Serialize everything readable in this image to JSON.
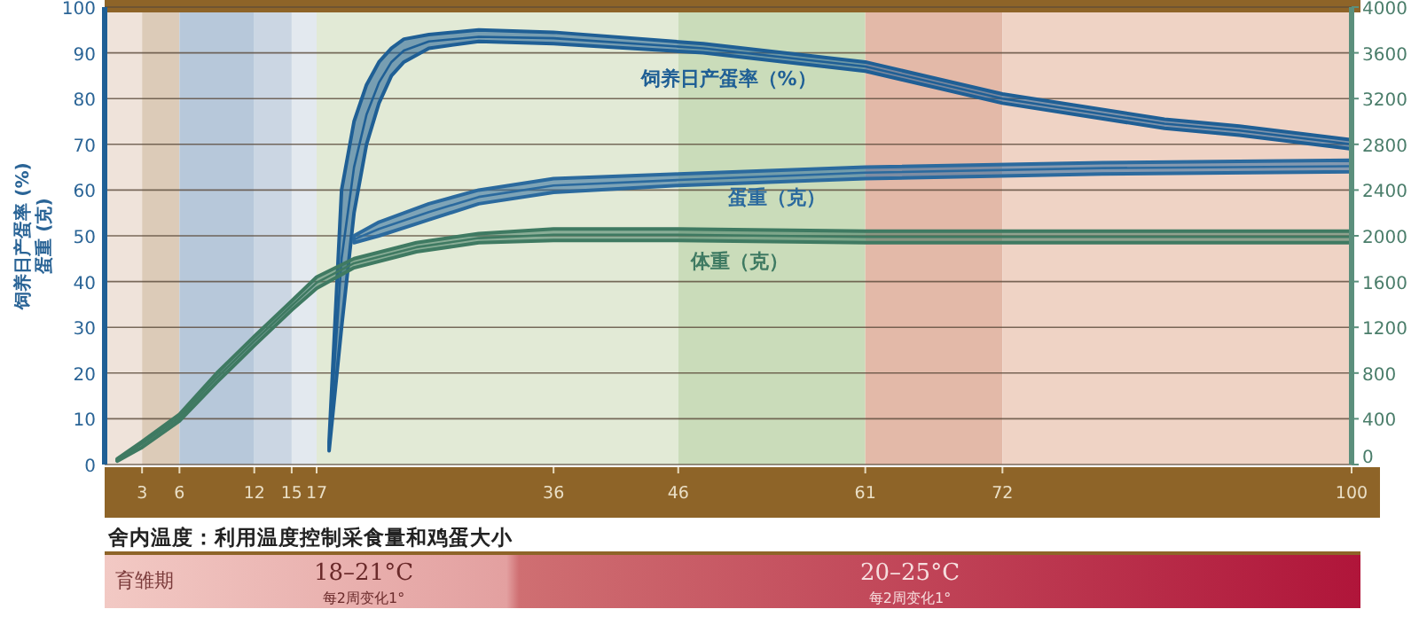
{
  "chart_data": {
    "type": "line",
    "ylabel": "饲养日产蛋率 (%)\n蛋重 (克)",
    "xlim": [
      0,
      100
    ],
    "xticks": [
      3,
      6,
      12,
      15,
      17,
      36,
      46,
      61,
      72,
      100
    ],
    "ylim": [
      0,
      100
    ],
    "yticks": [
      0,
      10,
      20,
      30,
      40,
      50,
      60,
      70,
      80,
      90,
      100
    ],
    "y2lim": [
      0,
      4000
    ],
    "y2ticks": [
      0,
      400,
      800,
      1200,
      1600,
      2000,
      2400,
      2800,
      3200,
      3600,
      4000
    ],
    "grid": "y",
    "marker": "none",
    "line_style": "solid",
    "series": [
      {
        "name": "饲养日产蛋率（%）",
        "color": "#1f5f95",
        "x": [
          18,
          19,
          20,
          21,
          22,
          23,
          24,
          26,
          30,
          36,
          48,
          61,
          72,
          85,
          91,
          100
        ],
        "values": [
          4,
          45,
          65,
          76.5,
          83.5,
          88,
          90.5,
          92.5,
          93.5,
          93.2,
          91,
          87,
          80,
          74.5,
          73,
          70
        ],
        "lower": [
          3,
          30,
          55,
          70,
          79,
          85,
          88,
          91,
          92.5,
          92,
          90,
          86,
          79,
          73.5,
          72,
          69
        ],
        "upper": [
          5,
          60,
          75,
          83,
          88,
          91,
          93,
          94,
          95,
          94.5,
          92,
          88,
          81,
          75.5,
          74,
          71
        ]
      },
      {
        "name": "蛋重（克）",
        "color": "#2b6a9e",
        "x": [
          20,
          22,
          26,
          30,
          36,
          46,
          61,
          80,
          100
        ],
        "values": [
          49.2,
          51.5,
          55.2,
          58.5,
          61,
          62.2,
          63.8,
          64.8,
          65.2
        ],
        "lower": [
          48.5,
          50,
          53.5,
          57,
          59.5,
          61,
          62.5,
          63.5,
          64
        ],
        "upper": [
          50,
          53,
          57,
          60,
          62.5,
          63.5,
          65,
          66,
          66.5
        ]
      },
      {
        "name": "体重（克）",
        "color": "#3f7a62",
        "axis": "y2",
        "x": [
          1,
          3,
          6,
          9,
          12,
          15,
          17,
          20,
          25,
          30,
          36,
          46,
          61,
          80,
          100
        ],
        "values": [
          40,
          180,
          410,
          760,
          1080,
          1390,
          1590,
          1760,
          1900,
          1980,
          2010,
          2010,
          1990,
          1990,
          1990
        ],
        "lower": [
          30,
          150,
          380,
          720,
          1040,
          1350,
          1540,
          1720,
          1860,
          1940,
          1960,
          1960,
          1940,
          1940,
          1940
        ],
        "upper": [
          50,
          200,
          440,
          800,
          1120,
          1430,
          1640,
          1800,
          1940,
          2020,
          2060,
          2060,
          2040,
          2040,
          2040
        ]
      }
    ],
    "bands": [
      {
        "axis": "x",
        "from": 0,
        "to": 3,
        "color": "#efe3da"
      },
      {
        "axis": "x",
        "from": 3,
        "to": 6,
        "color": "#dccbb8"
      },
      {
        "axis": "x",
        "from": 6,
        "to": 12,
        "color": "#b7c8da"
      },
      {
        "axis": "x",
        "from": 12,
        "to": 15,
        "color": "#cbd6e3"
      },
      {
        "axis": "x",
        "from": 15,
        "to": 17,
        "color": "#e3e9ef"
      },
      {
        "axis": "x",
        "from": 17,
        "to": 46,
        "color": "#e2ead6"
      },
      {
        "axis": "x",
        "from": 46,
        "to": 61,
        "color": "#cadcba"
      },
      {
        "axis": "x",
        "from": 61,
        "to": 72,
        "color": "#e3b9a8"
      },
      {
        "axis": "x",
        "from": 72,
        "to": 100,
        "color": "#efd3c5"
      }
    ],
    "annotations": [
      "舍内温度：利用温度控制采食量和鸡蛋大小",
      "育雏期",
      "18–21°C",
      "每2周变化1°",
      "20–25°C",
      "每2周变化1°"
    ]
  }
}
